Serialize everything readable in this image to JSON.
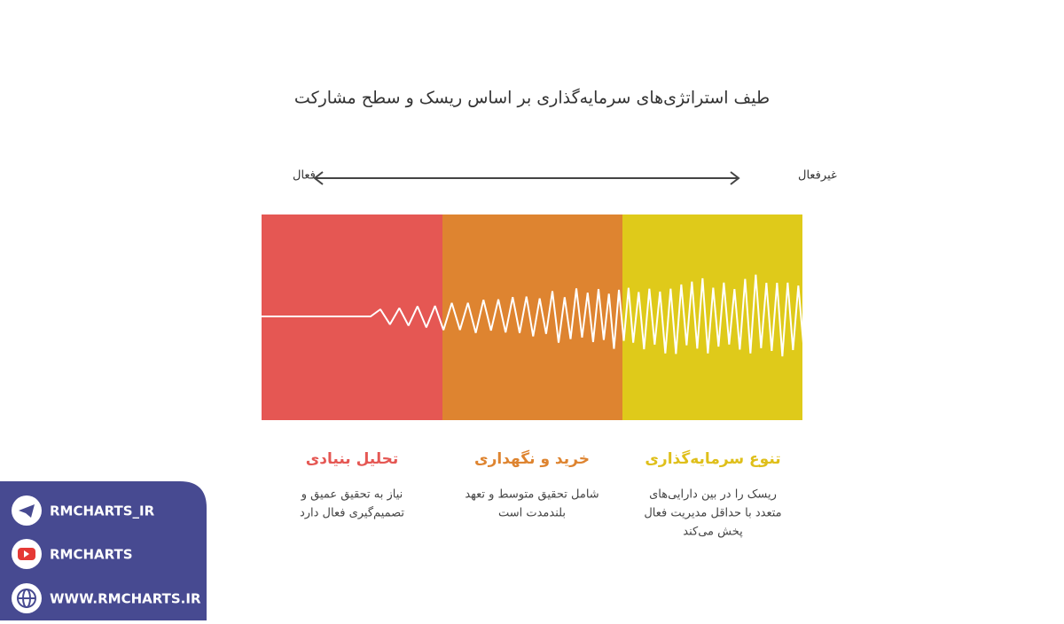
{
  "title": "طیف استراتژی‌های سرمایه‌گذاری بر اساس ریسک و سطح مشارکت",
  "axis": {
    "left_label": "فعال",
    "right_label": "غیرفعال"
  },
  "sections": [
    {
      "title": "تحلیل بنیادی",
      "description": [
        "نیاز به تحقیق عمیق و",
        "تصمیم‌گیری فعال دارد"
      ]
    },
    {
      "title": "خرید و نگهداری",
      "description": [
        "شامل تحقیق متوسط و تعهد",
        "بلندمدت است"
      ]
    },
    {
      "title": "تنوع سرمایه‌گذاری",
      "description": [
        "ریسک را در بین دارایی‌های",
        "متعدد با حداقل مدیریت فعال",
        "پخش می‌کند"
      ]
    }
  ],
  "sidebar": {
    "items": [
      "RMCHARTS_IR",
      "RMCHARTS",
      "WWW.RMCHARTS.IR"
    ]
  }
}
